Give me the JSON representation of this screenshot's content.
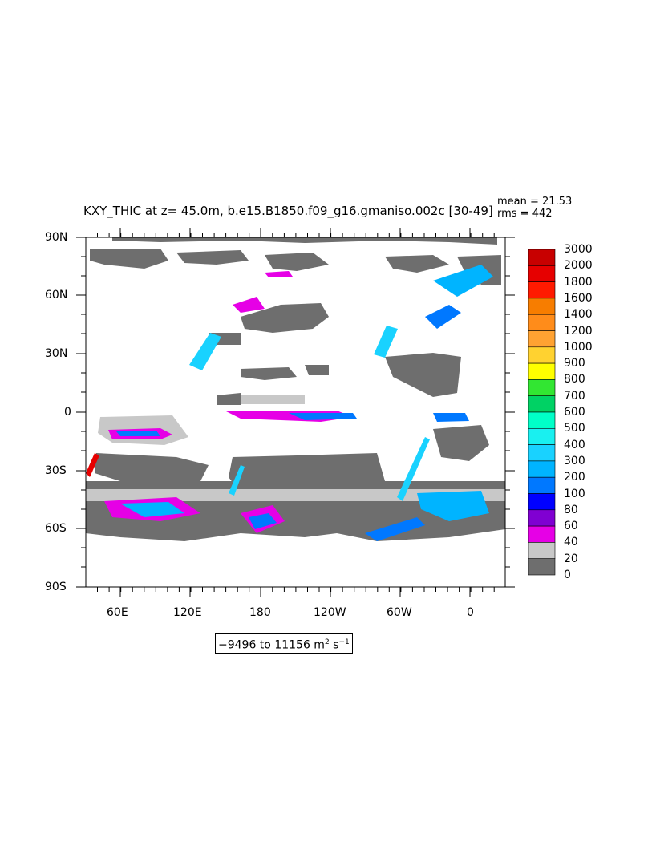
{
  "plot": {
    "title": "KXY_THIC at z=  45.0m, b.e15.B1850.f09_g16.gmaniso.002c [30-49]",
    "mean_text": "mean = 21.53",
    "rms_text": "rms = 442"
  },
  "axes": {
    "y_labels": [
      "90N",
      "60N",
      "30N",
      "0",
      "30S",
      "60S",
      "90S"
    ],
    "x_labels": [
      "60E",
      "120E",
      "180",
      "120W",
      "60W",
      "0"
    ]
  },
  "range": {
    "text": "−9496 to 11156 m",
    "sup1": "2",
    "mid": " s",
    "sup2": "−1"
  },
  "colorbar": {
    "levels": [
      "3000",
      "2000",
      "1800",
      "1600",
      "1400",
      "1200",
      "1000",
      "900",
      "800",
      "700",
      "600",
      "500",
      "400",
      "300",
      "200",
      "100",
      "80",
      "60",
      "40",
      "20",
      "0"
    ],
    "colors": [
      "#c80000",
      "#e60000",
      "#ff1a00",
      "#f77d00",
      "#ff8c1a",
      "#ffa232",
      "#ffd230",
      "#ffff00",
      "#32e632",
      "#00d264",
      "#00ffc8",
      "#19f0f0",
      "#19d2ff",
      "#00b4ff",
      "#0078ff",
      "#0000ff",
      "#8000d2",
      "#e600e6",
      "#c8c8c8",
      "#6e6e6e"
    ]
  }
}
